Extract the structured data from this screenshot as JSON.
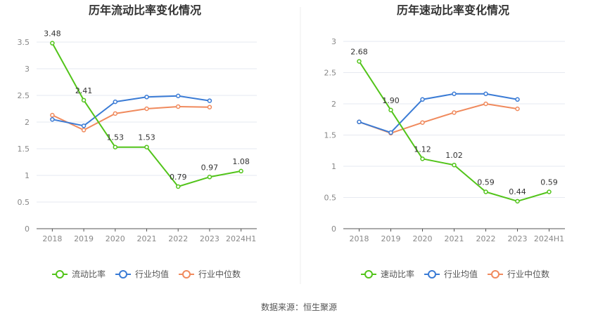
{
  "source": "数据来源：恒生聚源",
  "colors": {
    "company": "#52c41a",
    "industry_avg": "#3a7bd5",
    "industry_median": "#f08a5d",
    "grid": "#e6e9f0",
    "axis": "#555555"
  },
  "chart_data": [
    {
      "type": "line",
      "title": "历年流动比率变化情况",
      "categories": [
        "2018",
        "2019",
        "2020",
        "2021",
        "2022",
        "2023",
        "2024H1"
      ],
      "ylim": [
        0,
        3.5
      ],
      "yticks": [
        "0",
        "0.5",
        "1",
        "1.5",
        "2",
        "2.5",
        "3",
        "3.5"
      ],
      "grid": true,
      "legend": "bottom",
      "series": [
        {
          "name": "流动比率",
          "key": "company",
          "values": [
            3.48,
            2.41,
            1.53,
            1.53,
            0.79,
            0.97,
            1.08
          ],
          "labels": [
            "3.48",
            "2.41",
            "1.53",
            "1.53",
            "0.79",
            "0.97",
            "1.08"
          ]
        },
        {
          "name": "行业均值",
          "key": "industry_avg",
          "values": [
            2.05,
            1.93,
            2.38,
            2.47,
            2.49,
            2.4,
            null
          ]
        },
        {
          "name": "行业中位数",
          "key": "industry_median",
          "values": [
            2.13,
            1.85,
            2.16,
            2.25,
            2.29,
            2.28,
            null
          ]
        }
      ]
    },
    {
      "type": "line",
      "title": "历年速动比率变化情况",
      "categories": [
        "2018",
        "2019",
        "2020",
        "2021",
        "2022",
        "2023",
        "2024H1"
      ],
      "ylim": [
        0,
        3
      ],
      "yticks": [
        "0",
        "0.5",
        "1",
        "1.5",
        "2",
        "2.5",
        "3"
      ],
      "grid": true,
      "legend": "bottom",
      "series": [
        {
          "name": "速动比率",
          "key": "company",
          "values": [
            2.68,
            1.9,
            1.12,
            1.02,
            0.59,
            0.44,
            0.59
          ],
          "labels": [
            "2.68",
            "1.90",
            "1.12",
            "1.02",
            "0.59",
            "0.44",
            "0.59"
          ]
        },
        {
          "name": "行业均值",
          "key": "industry_avg",
          "values": [
            1.71,
            1.54,
            2.07,
            2.16,
            2.16,
            2.07,
            null
          ]
        },
        {
          "name": "行业中位数",
          "key": "industry_median",
          "values": [
            1.71,
            1.53,
            1.7,
            1.86,
            2.0,
            1.92,
            null
          ]
        }
      ]
    }
  ]
}
